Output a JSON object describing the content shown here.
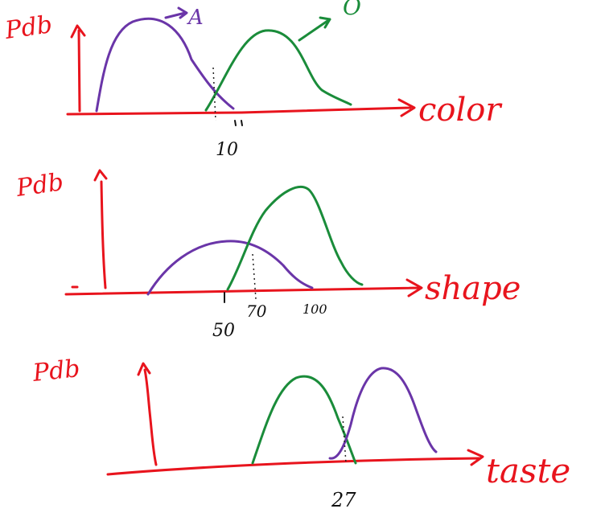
{
  "panels": [
    {
      "ylabel": "Pdb",
      "xlabel": "color",
      "class_purple_label": "A",
      "class_green_label": "O",
      "tick_labels": [
        "10"
      ]
    },
    {
      "ylabel": "Pdb",
      "xlabel": "shape",
      "tick_labels": [
        "50",
        "70",
        "100"
      ]
    },
    {
      "ylabel": "Pdb",
      "xlabel": "taste",
      "tick_labels": [
        "27"
      ]
    }
  ],
  "colors": {
    "axes": "#e8141d",
    "class_purple": "#6a35a8",
    "class_green": "#1a8c3a"
  }
}
